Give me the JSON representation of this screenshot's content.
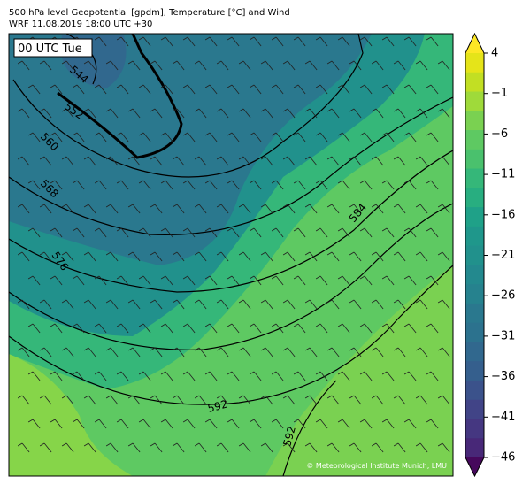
{
  "header": {
    "title": [
      "500 hPa level Geopotential [gpdm], Temperature [°C] and Wind",
      "WRF 11.08.2019 18:00 UTC +30"
    ]
  },
  "map": {
    "time_label": "00 UTC Tue",
    "contour_labels": [
      544,
      552,
      560,
      568,
      576,
      584,
      592,
      592
    ],
    "credit": "© Meteorological Institute Munich, LMU"
  },
  "colorbar": {
    "ticks": [
      {
        "value": 4,
        "label": "4"
      },
      {
        "value": -1,
        "label": "−1"
      },
      {
        "value": -6,
        "label": "−6"
      },
      {
        "value": -11,
        "label": "−11"
      },
      {
        "value": -16,
        "label": "−16"
      },
      {
        "value": -21,
        "label": "−21"
      },
      {
        "value": -26,
        "label": "−26"
      },
      {
        "value": -31,
        "label": "−31"
      },
      {
        "value": -36,
        "label": "−36"
      },
      {
        "value": -41,
        "label": "−41"
      },
      {
        "value": -46,
        "label": "−46"
      }
    ],
    "colors": [
      "#fde725",
      "#e5e419",
      "#c2df23",
      "#9fda3a",
      "#7ad151",
      "#5ec962",
      "#4ac16d",
      "#35b779",
      "#28ae80",
      "#1fa188",
      "#1f978b",
      "#21918c",
      "#23898e",
      "#26828e",
      "#2a788e",
      "#2c728e",
      "#31688e",
      "#355f8d",
      "#3b528b",
      "#414487",
      "#453781",
      "#482878",
      "#46085c"
    ]
  }
}
